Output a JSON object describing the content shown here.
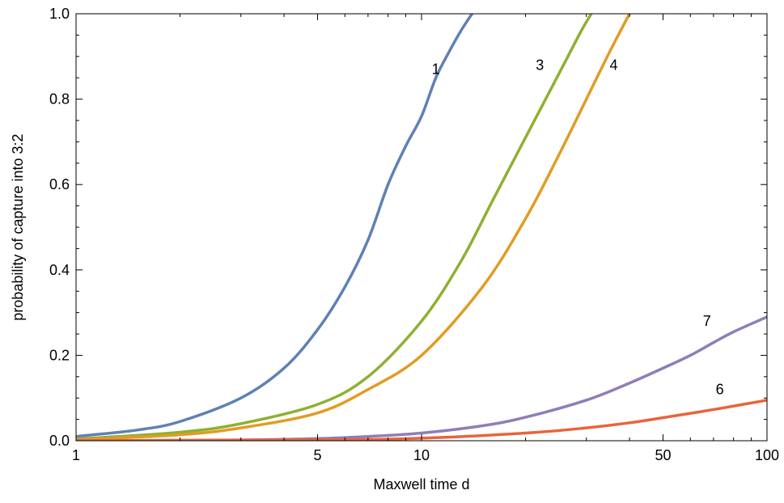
{
  "chart_data": {
    "type": "line",
    "xlabel": "Maxwell time  d",
    "ylabel": "probability of capture into 3:2",
    "xscale": "log",
    "xlim": [
      1,
      100
    ],
    "ylim": [
      0,
      1
    ],
    "x_ticks": [
      {
        "value": 1,
        "label": "1"
      },
      {
        "value": 5,
        "label": "5"
      },
      {
        "value": 10,
        "label": "10"
      },
      {
        "value": 50,
        "label": "50"
      },
      {
        "value": 100,
        "label": "100"
      }
    ],
    "y_ticks": [
      {
        "value": 0,
        "label": "0.0"
      },
      {
        "value": 0.2,
        "label": "0.2"
      },
      {
        "value": 0.4,
        "label": "0.4"
      },
      {
        "value": 0.6,
        "label": "0.6"
      },
      {
        "value": 0.8,
        "label": "0.8"
      },
      {
        "value": 1.0,
        "label": "1.0"
      }
    ],
    "grid": false,
    "series": [
      {
        "name": "1",
        "color": "#5E81B5",
        "label_at": [
          11,
          0.87
        ],
        "points": [
          [
            1,
            0.01
          ],
          [
            1.5,
            0.025
          ],
          [
            2,
            0.045
          ],
          [
            3,
            0.1
          ],
          [
            4,
            0.17
          ],
          [
            5,
            0.26
          ],
          [
            6,
            0.36
          ],
          [
            7,
            0.47
          ],
          [
            8,
            0.6
          ],
          [
            9,
            0.69
          ],
          [
            10,
            0.76
          ],
          [
            11,
            0.85
          ],
          [
            12,
            0.91
          ],
          [
            13,
            0.96
          ],
          [
            14,
            1.0
          ]
        ]
      },
      {
        "name": "3",
        "color": "#8FB032",
        "label_at": [
          22,
          0.88
        ],
        "points": [
          [
            1,
            0.004
          ],
          [
            2,
            0.02
          ],
          [
            3,
            0.04
          ],
          [
            5,
            0.085
          ],
          [
            7,
            0.15
          ],
          [
            10,
            0.28
          ],
          [
            13,
            0.42
          ],
          [
            16,
            0.56
          ],
          [
            20,
            0.71
          ],
          [
            25,
            0.86
          ],
          [
            29,
            0.96
          ],
          [
            31,
            1.0
          ]
        ]
      },
      {
        "name": "4",
        "color": "#E19C24",
        "label_at": [
          36,
          0.88
        ],
        "points": [
          [
            1,
            0.002
          ],
          [
            2,
            0.014
          ],
          [
            3,
            0.03
          ],
          [
            5,
            0.065
          ],
          [
            7,
            0.12
          ],
          [
            10,
            0.2
          ],
          [
            15,
            0.36
          ],
          [
            20,
            0.52
          ],
          [
            25,
            0.67
          ],
          [
            30,
            0.8
          ],
          [
            35,
            0.91
          ],
          [
            40,
            1.0
          ]
        ]
      },
      {
        "name": "7",
        "color": "#8F7DB8",
        "label_at": [
          67,
          0.28
        ],
        "points": [
          [
            1,
            0.0
          ],
          [
            3,
            0.002
          ],
          [
            5,
            0.005
          ],
          [
            7,
            0.01
          ],
          [
            10,
            0.018
          ],
          [
            15,
            0.035
          ],
          [
            20,
            0.055
          ],
          [
            30,
            0.095
          ],
          [
            40,
            0.135
          ],
          [
            50,
            0.17
          ],
          [
            60,
            0.2
          ],
          [
            70,
            0.23
          ],
          [
            80,
            0.255
          ],
          [
            100,
            0.29
          ]
        ]
      },
      {
        "name": "6",
        "color": "#E8643C",
        "label_at": [
          73,
          0.12
        ],
        "points": [
          [
            1,
            0.0
          ],
          [
            5,
            0.002
          ],
          [
            10,
            0.006
          ],
          [
            20,
            0.018
          ],
          [
            30,
            0.03
          ],
          [
            40,
            0.042
          ],
          [
            50,
            0.054
          ],
          [
            70,
            0.073
          ],
          [
            100,
            0.095
          ]
        ]
      }
    ]
  }
}
